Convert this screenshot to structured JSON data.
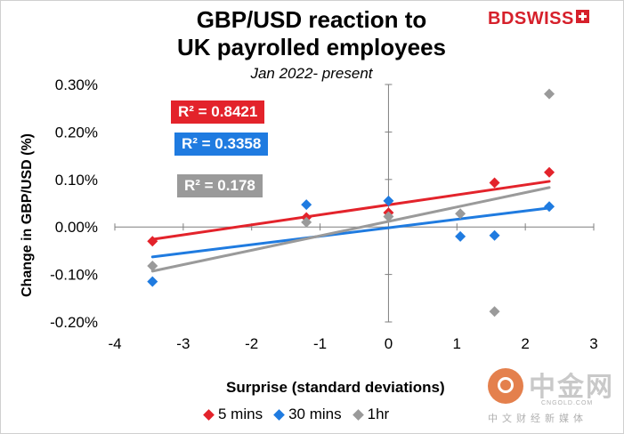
{
  "header": {
    "title_line1": "GBP/USD reaction to",
    "title_line2": "UK payrolled employees",
    "subtitle": "Jan 2022- present"
  },
  "logo": {
    "brand_bd": "BD",
    "brand_swiss": "SWISS"
  },
  "watermark": {
    "name": "中金网",
    "url": "CNGOLD.COM",
    "tagline": "中文财经新媒体"
  },
  "colors": {
    "red": "#e3232b",
    "blue": "#1f7be0",
    "gray": "#9a9a9a"
  },
  "chart_data": {
    "type": "scatter",
    "title": "GBP/USD reaction to UK payrolled employees",
    "subtitle": "Jan 2022- present",
    "xlabel": "Surprise (standard deviations)",
    "ylabel": "Change in GBP/USD  (%)",
    "xlim": [
      -4,
      3
    ],
    "ylim": [
      -0.2,
      0.3
    ],
    "x_ticks": [
      -4,
      -3,
      -2,
      -1,
      0,
      1,
      2,
      3
    ],
    "y_ticks": [
      0.3,
      0.2,
      0.1,
      0.0,
      -0.1,
      -0.2
    ],
    "y_tick_labels": [
      "0.30%",
      "0.20%",
      "0.10%",
      "0.00%",
      "-0.10%",
      "-0.20%"
    ],
    "legend_position": "bottom",
    "series": [
      {
        "name": "5 mins",
        "color": "#e3232b",
        "r2": "R² = 0.8421",
        "points": [
          [
            -3.45,
            -0.03
          ],
          [
            -1.2,
            0.02
          ],
          [
            0.0,
            0.03
          ],
          [
            1.55,
            0.093
          ],
          [
            2.35,
            0.115
          ]
        ],
        "trend": [
          [
            -3.45,
            -0.026
          ],
          [
            2.35,
            0.096
          ]
        ]
      },
      {
        "name": "30 mins",
        "color": "#1f7be0",
        "r2": "R² = 0.3358",
        "points": [
          [
            -3.45,
            -0.115
          ],
          [
            -1.2,
            0.047
          ],
          [
            0.0,
            0.055
          ],
          [
            1.05,
            -0.02
          ],
          [
            1.55,
            -0.018
          ],
          [
            2.35,
            0.043
          ]
        ],
        "trend": [
          [
            -3.45,
            -0.063
          ],
          [
            2.35,
            0.04
          ]
        ]
      },
      {
        "name": "1hr",
        "color": "#9a9a9a",
        "r2": "R² = 0.178",
        "points": [
          [
            -3.45,
            -0.082
          ],
          [
            -1.2,
            0.01
          ],
          [
            0.0,
            0.022
          ],
          [
            1.05,
            0.028
          ],
          [
            1.55,
            -0.178
          ],
          [
            2.35,
            0.28
          ]
        ],
        "trend": [
          [
            -3.45,
            -0.093
          ],
          [
            2.35,
            0.083
          ]
        ]
      }
    ]
  }
}
